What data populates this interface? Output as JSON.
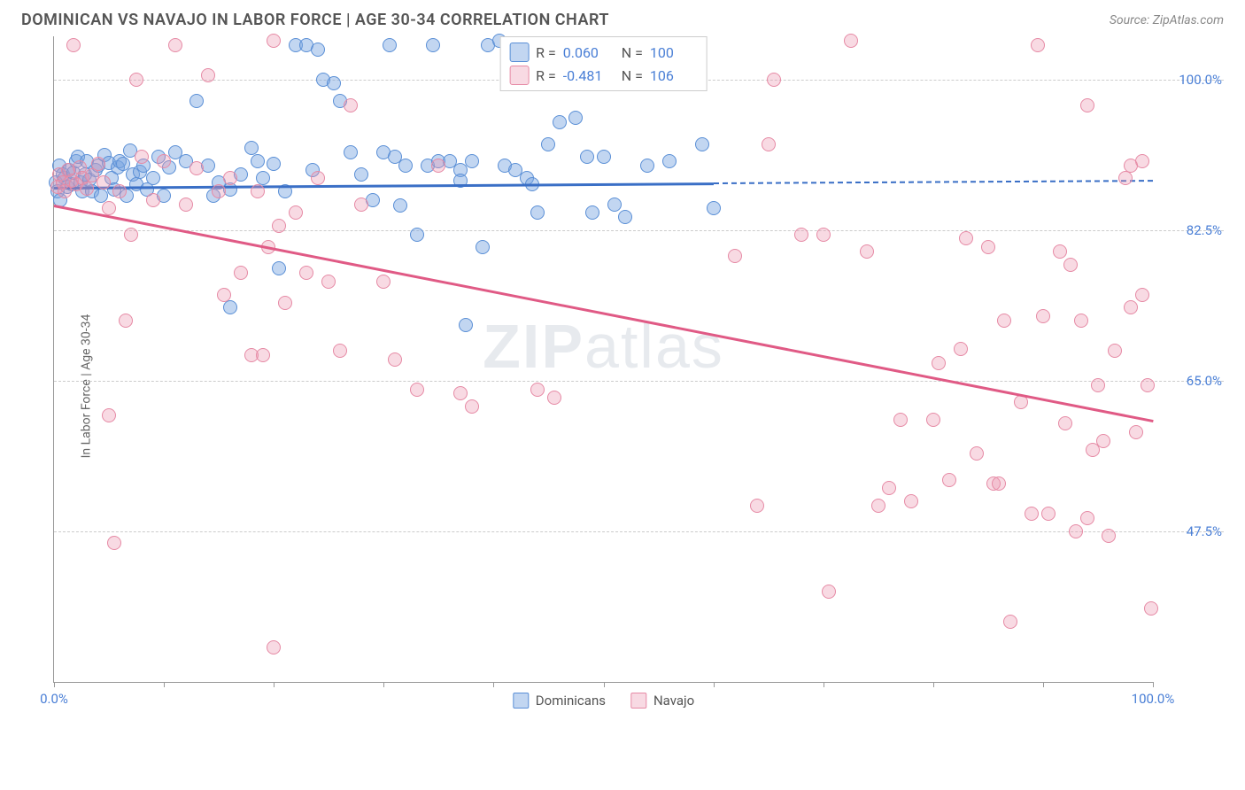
{
  "title": "DOMINICAN VS NAVAJO IN LABOR FORCE | AGE 30-34 CORRELATION CHART",
  "source": "Source: ZipAtlas.com",
  "ylabel": "In Labor Force | Age 30-34",
  "watermark_a": "ZIP",
  "watermark_b": "atlas",
  "chart": {
    "type": "scatter",
    "background_color": "#ffffff",
    "grid_color": "#cccccc",
    "axis_color": "#999999",
    "tick_label_color": "#4a7fd6",
    "xlim": [
      0,
      100
    ],
    "ylim": [
      30,
      105
    ],
    "y_ticks": [
      {
        "v": 100.0,
        "label": "100.0%"
      },
      {
        "v": 82.5,
        "label": "82.5%"
      },
      {
        "v": 65.0,
        "label": "65.0%"
      },
      {
        "v": 47.5,
        "label": "47.5%"
      }
    ],
    "x_ticks": [
      0,
      10,
      20,
      30,
      40,
      50,
      60,
      70,
      80,
      90,
      100
    ],
    "x_tick_labels": [
      {
        "v": 0,
        "label": "0.0%"
      },
      {
        "v": 100,
        "label": "100.0%"
      }
    ],
    "series": [
      {
        "name": "Dominicans",
        "marker_fill": "rgba(120,165,225,0.45)",
        "marker_stroke": "#5a8fd6",
        "line_color": "#3a6fc6",
        "marker_size": 16,
        "r_value": "0.060",
        "n_value": "100",
        "trend": {
          "x0": 0,
          "y0": 87.5,
          "x1": 60,
          "y1": 88.0,
          "x1_dash": 100,
          "y1_dash": 88.3
        },
        "points": [
          [
            0.2,
            88
          ],
          [
            0.3,
            87
          ],
          [
            0.5,
            90
          ],
          [
            0.6,
            86
          ],
          [
            0.8,
            89
          ],
          [
            1.0,
            88.5
          ],
          [
            1.2,
            87.5
          ],
          [
            1.4,
            89.5
          ],
          [
            1.6,
            87.8
          ],
          [
            1.8,
            89.2
          ],
          [
            2.0,
            90.5
          ],
          [
            2.2,
            91
          ],
          [
            2.4,
            88
          ],
          [
            2.6,
            87
          ],
          [
            2.8,
            89
          ],
          [
            3.0,
            90.5
          ],
          [
            3.2,
            88.3
          ],
          [
            3.5,
            87
          ],
          [
            3.8,
            89.5
          ],
          [
            4.0,
            90
          ],
          [
            4.3,
            86.5
          ],
          [
            4.6,
            91.2
          ],
          [
            5.0,
            90.3
          ],
          [
            5.2,
            88.5
          ],
          [
            5.5,
            87.2
          ],
          [
            5.8,
            89.8
          ],
          [
            6.0,
            90.5
          ],
          [
            6.3,
            90.2
          ],
          [
            6.6,
            86.5
          ],
          [
            6.9,
            91.7
          ],
          [
            7.2,
            89
          ],
          [
            7.5,
            87.8
          ],
          [
            7.8,
            89.3
          ],
          [
            8.1,
            90
          ],
          [
            8.5,
            87.2
          ],
          [
            9.0,
            88.5
          ],
          [
            9.5,
            91
          ],
          [
            10,
            86.5
          ],
          [
            10.5,
            89.8
          ],
          [
            11,
            91.5
          ],
          [
            12,
            90.5
          ],
          [
            13,
            97.5
          ],
          [
            14,
            90
          ],
          [
            15,
            88
          ],
          [
            16,
            87.2
          ],
          [
            17,
            89
          ],
          [
            18,
            92
          ],
          [
            19,
            88.5
          ],
          [
            20,
            90.2
          ],
          [
            21,
            87
          ],
          [
            22,
            104
          ],
          [
            23,
            104
          ],
          [
            24,
            103.5
          ],
          [
            24.5,
            100
          ],
          [
            25.5,
            99.5
          ],
          [
            26,
            97.5
          ],
          [
            27,
            91.5
          ],
          [
            28,
            89
          ],
          [
            29,
            86
          ],
          [
            30,
            91.5
          ],
          [
            30.5,
            104
          ],
          [
            31,
            91
          ],
          [
            32,
            90
          ],
          [
            33,
            82
          ],
          [
            34,
            90
          ],
          [
            34.5,
            104
          ],
          [
            35,
            90.5
          ],
          [
            36,
            90.5
          ],
          [
            37,
            89.5
          ],
          [
            37.5,
            71.5
          ],
          [
            38,
            90.5
          ],
          [
            39,
            80.5
          ],
          [
            39.5,
            104
          ],
          [
            40.5,
            104.5
          ],
          [
            41,
            90
          ],
          [
            42,
            89.5
          ],
          [
            43,
            88.5
          ],
          [
            44,
            84.5
          ],
          [
            45,
            92.5
          ],
          [
            46,
            95
          ],
          [
            47,
            104
          ],
          [
            47.5,
            95.5
          ],
          [
            48.5,
            91
          ],
          [
            49,
            84.5
          ],
          [
            50,
            91
          ],
          [
            51,
            85.5
          ],
          [
            52,
            84
          ],
          [
            54,
            90
          ],
          [
            55,
            104
          ],
          [
            56,
            90.5
          ],
          [
            58,
            99.5
          ],
          [
            59,
            92.5
          ],
          [
            60,
            85
          ],
          [
            14.5,
            86.5
          ],
          [
            18.5,
            90.5
          ],
          [
            23.5,
            89.5
          ],
          [
            31.5,
            85.3
          ],
          [
            37,
            88.2
          ],
          [
            43.5,
            87.8
          ],
          [
            16,
            73.5
          ],
          [
            20.5,
            78
          ]
        ]
      },
      {
        "name": "Navajo",
        "marker_fill": "rgba(235,150,175,0.35)",
        "marker_stroke": "#e68aa5",
        "line_color": "#e05a85",
        "marker_size": 16,
        "r_value": "-0.481",
        "n_value": "106",
        "trend": {
          "x0": 0,
          "y0": 85.5,
          "x1": 100,
          "y1": 60.5
        },
        "points": [
          [
            0.3,
            87.5
          ],
          [
            0.5,
            89
          ],
          [
            0.8,
            88
          ],
          [
            1.0,
            87
          ],
          [
            1.3,
            89.5
          ],
          [
            1.6,
            88.2
          ],
          [
            2.0,
            87.8
          ],
          [
            2.3,
            89.8
          ],
          [
            2.6,
            88.5
          ],
          [
            3.0,
            87.3
          ],
          [
            3.5,
            88.8
          ],
          [
            4.0,
            90.2
          ],
          [
            4.5,
            88
          ],
          [
            5.0,
            85
          ],
          [
            6.0,
            87
          ],
          [
            6.5,
            72
          ],
          [
            7.0,
            82
          ],
          [
            7.5,
            100
          ],
          [
            8.0,
            91
          ],
          [
            9.0,
            86
          ],
          [
            10,
            90.5
          ],
          [
            11,
            104
          ],
          [
            12,
            85.5
          ],
          [
            13,
            89.7
          ],
          [
            14,
            100.5
          ],
          [
            15,
            87
          ],
          [
            15.5,
            75
          ],
          [
            16,
            88.5
          ],
          [
            17,
            77.5
          ],
          [
            18,
            68
          ],
          [
            18.5,
            87
          ],
          [
            19,
            68
          ],
          [
            19.5,
            80.5
          ],
          [
            20,
            104.5
          ],
          [
            20.5,
            83
          ],
          [
            21,
            74
          ],
          [
            22,
            84.5
          ],
          [
            23,
            77.5
          ],
          [
            24,
            88.5
          ],
          [
            25,
            76.5
          ],
          [
            26,
            68.5
          ],
          [
            27,
            97
          ],
          [
            28,
            85.5
          ],
          [
            30,
            76.5
          ],
          [
            31,
            67.5
          ],
          [
            33,
            64
          ],
          [
            35,
            90
          ],
          [
            37,
            63.5
          ],
          [
            38,
            62
          ],
          [
            44,
            64
          ],
          [
            45.5,
            63
          ],
          [
            47,
            104
          ],
          [
            62,
            79.5
          ],
          [
            64,
            50.5
          ],
          [
            65,
            92.5
          ],
          [
            65.5,
            100
          ],
          [
            68,
            82
          ],
          [
            70,
            82
          ],
          [
            70.5,
            40.5
          ],
          [
            72.5,
            104.5
          ],
          [
            74,
            80
          ],
          [
            75,
            50.5
          ],
          [
            76,
            52.5
          ],
          [
            77,
            60.5
          ],
          [
            78,
            51
          ],
          [
            80,
            60.5
          ],
          [
            80.5,
            67
          ],
          [
            81.5,
            53.5
          ],
          [
            82.5,
            68.7
          ],
          [
            83,
            81.5
          ],
          [
            84,
            56.5
          ],
          [
            85,
            80.5
          ],
          [
            85.5,
            53
          ],
          [
            86,
            53
          ],
          [
            86.5,
            72
          ],
          [
            87,
            37
          ],
          [
            88,
            62.5
          ],
          [
            89,
            49.5
          ],
          [
            89.5,
            104
          ],
          [
            90,
            72.5
          ],
          [
            90.5,
            49.5
          ],
          [
            91.5,
            80
          ],
          [
            92,
            60
          ],
          [
            92.5,
            78.5
          ],
          [
            93,
            47.5
          ],
          [
            93.5,
            72
          ],
          [
            94,
            49
          ],
          [
            94.5,
            57
          ],
          [
            95,
            64.5
          ],
          [
            95.5,
            58
          ],
          [
            96,
            47
          ],
          [
            96.5,
            68.5
          ],
          [
            97.5,
            88.5
          ],
          [
            98,
            73.5
          ],
          [
            98.5,
            59
          ],
          [
            99,
            75
          ],
          [
            99.5,
            64.5
          ],
          [
            99.8,
            38.5
          ],
          [
            99,
            90.5
          ],
          [
            98,
            90
          ],
          [
            94,
            97
          ],
          [
            5.5,
            46.2
          ],
          [
            5.0,
            61
          ],
          [
            20,
            34
          ],
          [
            1.8,
            104
          ]
        ]
      }
    ]
  }
}
